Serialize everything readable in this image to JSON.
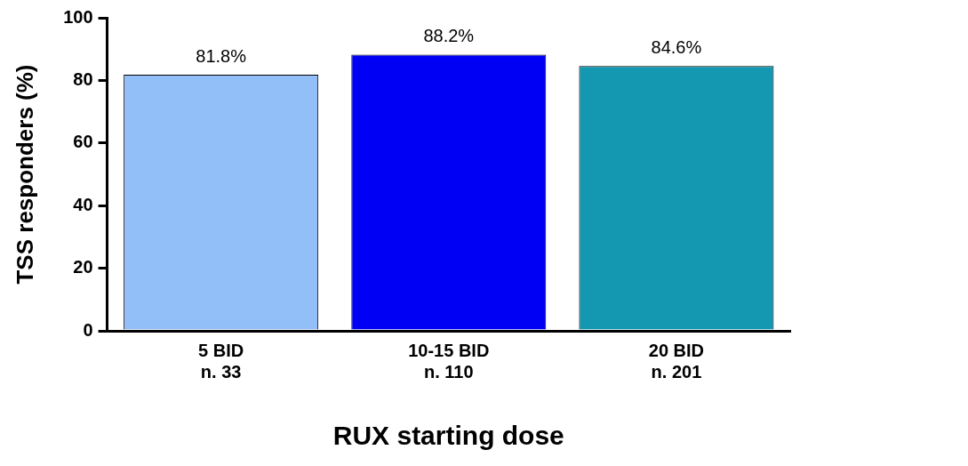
{
  "chart_data": {
    "type": "bar",
    "xlabel": "RUX starting dose",
    "ylabel": "TSS responders (%)",
    "categories": [
      "5 BID\nn. 33",
      "10-15 BID\nn. 110",
      "20 BID\nn. 201"
    ],
    "values": [
      81.8,
      88.2,
      84.6
    ],
    "colors": [
      "#92bff7",
      "#0000f5",
      "#1497b0"
    ],
    "value_labels": [
      "81.8%",
      "88.2%",
      "84.6%"
    ],
    "ylim": [
      0,
      100
    ],
    "yticks": [
      0,
      20,
      40,
      60,
      80,
      100
    ],
    "grid": false,
    "legend": false
  }
}
